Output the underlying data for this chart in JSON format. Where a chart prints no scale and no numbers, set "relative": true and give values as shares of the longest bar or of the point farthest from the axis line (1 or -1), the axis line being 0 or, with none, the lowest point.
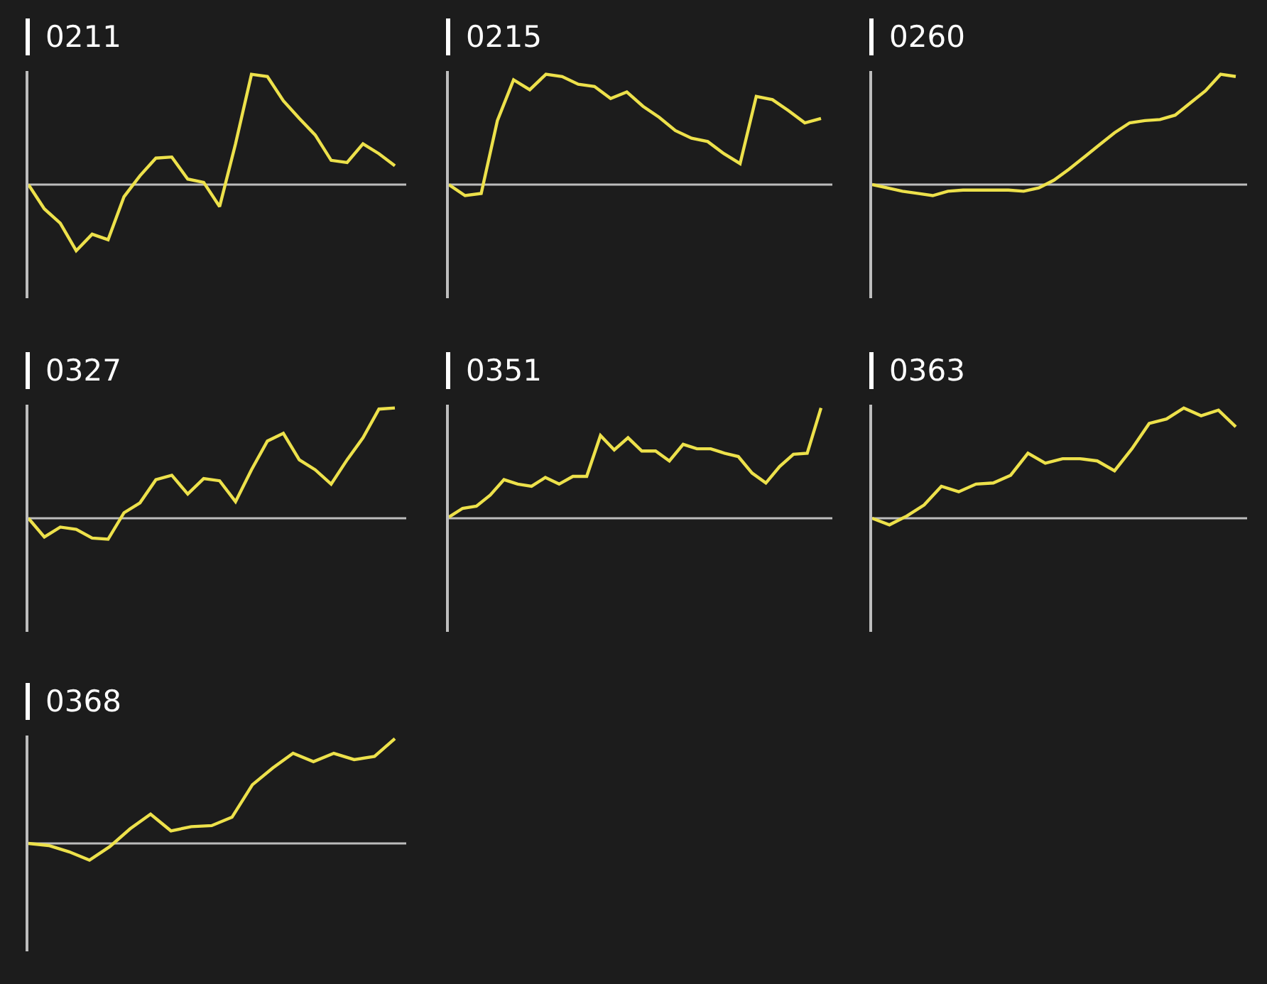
{
  "chart_data": [
    {
      "type": "line",
      "title": "0211",
      "relative": true,
      "color": "#ede14b",
      "categories": [
        null,
        null,
        null,
        null,
        null,
        null,
        null,
        null,
        null,
        null,
        null,
        null,
        null,
        null,
        null,
        null,
        null,
        null,
        null,
        null,
        null,
        null,
        null,
        null
      ],
      "values": [
        0,
        -0.22,
        -0.35,
        -0.6,
        -0.45,
        -0.5,
        -0.11,
        0.08,
        0.24,
        0.25,
        0.05,
        0.02,
        -0.2,
        0.37,
        1.0,
        0.98,
        0.76,
        0.6,
        0.45,
        0.22,
        0.2,
        0.37,
        0.28,
        0.17
      ]
    },
    {
      "type": "line",
      "title": "0215",
      "relative": true,
      "color": "#ede14b",
      "categories": [
        null,
        null,
        null,
        null,
        null,
        null,
        null,
        null,
        null,
        null,
        null,
        null,
        null,
        null,
        null,
        null,
        null,
        null,
        null,
        null,
        null,
        null,
        null,
        null
      ],
      "values": [
        0,
        -0.1,
        -0.08,
        0.58,
        0.95,
        0.86,
        1.0,
        0.98,
        0.91,
        0.89,
        0.78,
        0.84,
        0.71,
        0.61,
        0.49,
        0.42,
        0.39,
        0.28,
        0.19,
        0.8,
        0.77,
        0.67,
        0.56,
        0.6
      ]
    },
    {
      "type": "line",
      "title": "0260",
      "relative": true,
      "color": "#ede14b",
      "categories": [
        null,
        null,
        null,
        null,
        null,
        null,
        null,
        null,
        null,
        null,
        null,
        null,
        null,
        null,
        null,
        null,
        null,
        null,
        null,
        null,
        null,
        null,
        null,
        null,
        null
      ],
      "values": [
        0,
        -0.03,
        -0.06,
        -0.08,
        -0.1,
        -0.06,
        -0.05,
        -0.05,
        -0.05,
        -0.05,
        -0.06,
        -0.03,
        0.04,
        0.14,
        0.25,
        0.36,
        0.47,
        0.56,
        0.58,
        0.59,
        0.63,
        0.74,
        0.85,
        1.0,
        0.98
      ]
    },
    {
      "type": "line",
      "title": "0327",
      "relative": true,
      "color": "#ede14b",
      "categories": [
        null,
        null,
        null,
        null,
        null,
        null,
        null,
        null,
        null,
        null,
        null,
        null,
        null,
        null,
        null,
        null,
        null,
        null,
        null,
        null,
        null,
        null,
        null,
        null
      ],
      "values": [
        0,
        -0.17,
        -0.08,
        -0.1,
        -0.18,
        -0.19,
        0.05,
        0.14,
        0.35,
        0.39,
        0.22,
        0.36,
        0.34,
        0.15,
        0.44,
        0.7,
        0.77,
        0.53,
        0.44,
        0.31,
        0.53,
        0.73,
        0.99,
        1.0
      ]
    },
    {
      "type": "line",
      "title": "0351",
      "relative": true,
      "color": "#ede14b",
      "categories": [
        null,
        null,
        null,
        null,
        null,
        null,
        null,
        null,
        null,
        null,
        null,
        null,
        null,
        null,
        null,
        null,
        null,
        null,
        null,
        null,
        null,
        null,
        null,
        null,
        null,
        null,
        null,
        null
      ],
      "values": [
        0.01,
        0.09,
        0.11,
        0.21,
        0.35,
        0.31,
        0.29,
        0.37,
        0.31,
        0.38,
        0.38,
        0.75,
        0.62,
        0.73,
        0.61,
        0.61,
        0.52,
        0.67,
        0.63,
        0.63,
        0.59,
        0.56,
        0.41,
        0.32,
        0.47,
        0.58,
        0.59,
        1.0
      ]
    },
    {
      "type": "line",
      "title": "0363",
      "relative": true,
      "color": "#ede14b",
      "categories": [
        null,
        null,
        null,
        null,
        null,
        null,
        null,
        null,
        null,
        null,
        null,
        null,
        null,
        null,
        null,
        null,
        null,
        null,
        null,
        null,
        null,
        null
      ],
      "values": [
        0,
        -0.06,
        0.02,
        0.12,
        0.29,
        0.24,
        0.31,
        0.32,
        0.39,
        0.59,
        0.5,
        0.54,
        0.54,
        0.52,
        0.43,
        0.63,
        0.86,
        0.9,
        1.0,
        0.93,
        0.98,
        0.83
      ]
    },
    {
      "type": "line",
      "title": "0368",
      "relative": true,
      "color": "#ede14b",
      "categories": [
        null,
        null,
        null,
        null,
        null,
        null,
        null,
        null,
        null,
        null,
        null,
        null,
        null,
        null,
        null,
        null,
        null,
        null,
        null
      ],
      "values": [
        0,
        -0.02,
        -0.08,
        -0.16,
        -0.03,
        0.14,
        0.28,
        0.12,
        0.16,
        0.17,
        0.25,
        0.56,
        0.72,
        0.86,
        0.78,
        0.86,
        0.8,
        0.83,
        1.0
      ]
    }
  ]
}
